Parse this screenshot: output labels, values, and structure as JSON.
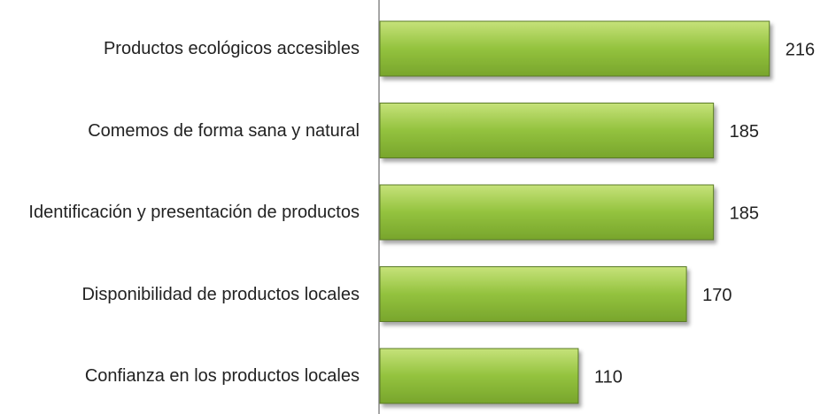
{
  "chart_data": {
    "type": "bar",
    "orientation": "horizontal",
    "categories": [
      "Productos ecológicos accesibles",
      "Comemos de forma sana y natural",
      "Identificación y presentación de productos",
      "Disponibilidad de productos locales",
      "Confianza en los productos locales"
    ],
    "values": [
      216,
      185,
      185,
      170,
      110
    ],
    "color": "#92c43a",
    "xlim": [
      0,
      250
    ]
  }
}
